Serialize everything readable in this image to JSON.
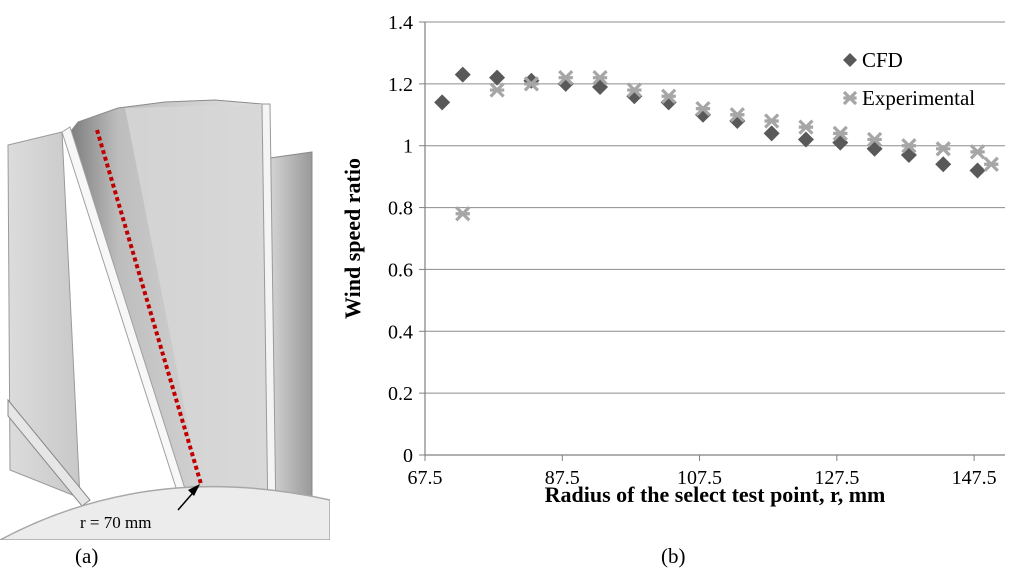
{
  "panel_a": {
    "label": "(a)",
    "annotation": "r = 70 mm",
    "colors": {
      "blade": "#d9d9d9",
      "blade_shadow": "#8c8c8c",
      "dotted_line": "#c00000",
      "hub": "#ececec"
    }
  },
  "panel_b": {
    "label": "(b)"
  },
  "chart_data": {
    "type": "scatter",
    "title": "",
    "xlabel": "Radius of the select test point, r, mm",
    "ylabel": "Wind speed ratio",
    "xlim": [
      67.5,
      152
    ],
    "ylim": [
      0,
      1.4
    ],
    "x_ticks": [
      "67.5",
      "87.5",
      "107.5",
      "127.5",
      "147.5"
    ],
    "x_tick_values": [
      67.5,
      87.5,
      107.5,
      127.5,
      147.5
    ],
    "y_ticks": [
      "0",
      "0.2",
      "0.4",
      "0.6",
      "0.8",
      "1",
      "1.2",
      "1.4"
    ],
    "y_tick_values": [
      0,
      0.2,
      0.4,
      0.6,
      0.8,
      1.0,
      1.2,
      1.4
    ],
    "grid": "horizontal",
    "legend_position": "top-right",
    "series": [
      {
        "name": "CFD",
        "marker": "diamond",
        "color": "#595959",
        "x": [
          70,
          73,
          78,
          83,
          88,
          93,
          98,
          103,
          108,
          113,
          118,
          123,
          128,
          133,
          138,
          143,
          148
        ],
        "y": [
          1.14,
          1.23,
          1.22,
          1.21,
          1.2,
          1.19,
          1.16,
          1.14,
          1.1,
          1.08,
          1.04,
          1.02,
          1.01,
          0.99,
          0.97,
          0.94,
          0.92
        ]
      },
      {
        "name": "Experimental",
        "marker": "asterisk",
        "color": "#a6a6a6",
        "x": [
          73,
          78,
          83,
          88,
          93,
          98,
          103,
          108,
          113,
          118,
          123,
          128,
          133,
          138,
          143,
          148,
          150
        ],
        "y": [
          0.78,
          1.18,
          1.2,
          1.22,
          1.22,
          1.18,
          1.16,
          1.12,
          1.1,
          1.08,
          1.06,
          1.04,
          1.02,
          1.0,
          0.99,
          0.98,
          0.94
        ]
      }
    ]
  }
}
